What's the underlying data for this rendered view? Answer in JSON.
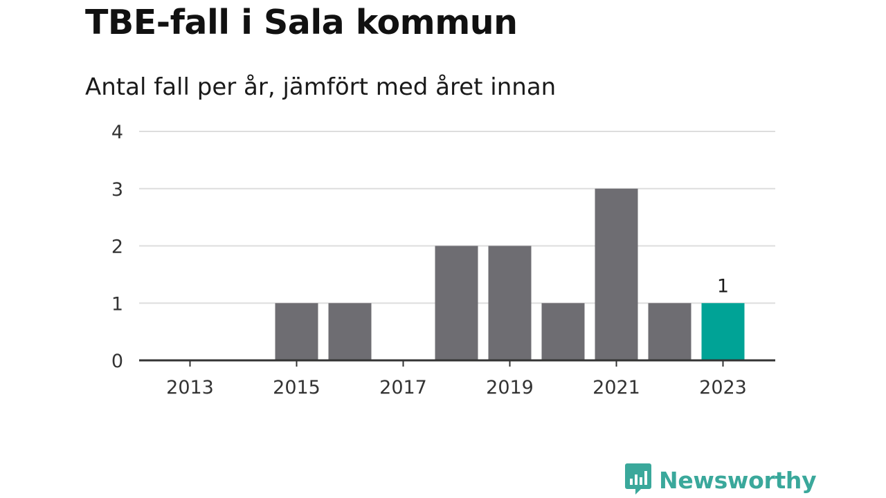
{
  "colors": {
    "bar": "#6e6d72",
    "highlight": "#00a396",
    "grid": "#dddddd",
    "axis": "#333333",
    "brand": "#3aa89b"
  },
  "brand": {
    "name": "Newsworthy",
    "icon": "newsworthy-logo-icon"
  },
  "chart_data": {
    "type": "bar",
    "title": "TBE-fall i Sala kommun",
    "subtitle": "Antal fall per år, jämfört med året innan",
    "categories": [
      "2013",
      "2014",
      "2015",
      "2016",
      "2017",
      "2018",
      "2019",
      "2020",
      "2021",
      "2022",
      "2023"
    ],
    "values": [
      0,
      0,
      1,
      1,
      0,
      2,
      2,
      1,
      3,
      1,
      1
    ],
    "highlight": "2023",
    "highlight_label": "1",
    "xticks": [
      "2013",
      "2015",
      "2017",
      "2019",
      "2021",
      "2023"
    ],
    "yticks": [
      "0",
      "1",
      "2",
      "3",
      "4"
    ],
    "ylim": [
      0,
      4
    ],
    "grid": true,
    "xlabel": "",
    "ylabel": ""
  }
}
